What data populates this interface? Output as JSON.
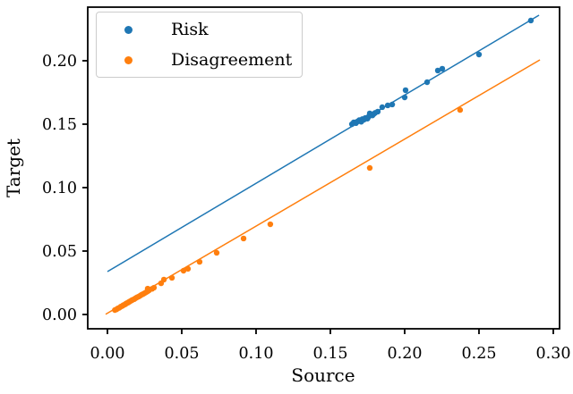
{
  "figure": {
    "background": "#ffffff",
    "frame_color": "#000000",
    "tick_color": "#000000"
  },
  "chart_data": {
    "type": "scatter",
    "title": "",
    "xlabel": "Source",
    "ylabel": "Target",
    "xlim": [
      -0.01325,
      0.30422
    ],
    "ylim": [
      -0.01127,
      0.24225
    ],
    "grid": false,
    "legend": {
      "position": "upper-left"
    },
    "xticks": {
      "values": [
        0.0,
        0.05,
        0.1,
        0.15,
        0.2,
        0.25,
        0.3
      ],
      "labels": [
        "0.00",
        "0.05",
        "0.10",
        "0.15",
        "0.20",
        "0.25",
        "0.30"
      ]
    },
    "yticks": {
      "values": [
        0.0,
        0.05,
        0.1,
        0.15,
        0.2
      ],
      "labels": [
        "0.00",
        "0.05",
        "0.10",
        "0.15",
        "0.20"
      ]
    },
    "series": [
      {
        "name": "Risk",
        "color": "#1f77b4",
        "marker": "circle",
        "fit_line": [
          [
            0.0,
            0.0338
          ],
          [
            0.2904,
            0.2359
          ]
        ],
        "points": [
          [
            0.1645,
            0.15
          ],
          [
            0.1657,
            0.1514
          ],
          [
            0.1662,
            0.1512
          ],
          [
            0.1672,
            0.1508
          ],
          [
            0.168,
            0.152
          ],
          [
            0.1687,
            0.1523
          ],
          [
            0.1694,
            0.1532
          ],
          [
            0.1699,
            0.1528
          ],
          [
            0.1708,
            0.1519
          ],
          [
            0.1715,
            0.154
          ],
          [
            0.1723,
            0.1534
          ],
          [
            0.1729,
            0.1538
          ],
          [
            0.1735,
            0.1549
          ],
          [
            0.175,
            0.1544
          ],
          [
            0.1758,
            0.156
          ],
          [
            0.1765,
            0.1585
          ],
          [
            0.1772,
            0.1575
          ],
          [
            0.1783,
            0.1569
          ],
          [
            0.1792,
            0.158
          ],
          [
            0.1801,
            0.1589
          ],
          [
            0.1819,
            0.1599
          ],
          [
            0.1849,
            0.1634
          ],
          [
            0.1886,
            0.1648
          ],
          [
            0.1916,
            0.1655
          ],
          [
            0.2,
            0.1711
          ],
          [
            0.2006,
            0.1768
          ],
          [
            0.2151,
            0.1831
          ],
          [
            0.2223,
            0.1923
          ],
          [
            0.2253,
            0.1937
          ],
          [
            0.25,
            0.2049
          ],
          [
            0.2849,
            0.2317
          ]
        ]
      },
      {
        "name": "Disagreement",
        "color": "#ff7f0e",
        "marker": "circle",
        "fit_line": [
          [
            -0.0012,
            0.0002
          ],
          [
            0.291,
            0.2007
          ]
        ],
        "points": [
          [
            0.005,
            0.0035
          ],
          [
            0.006,
            0.004
          ],
          [
            0.007,
            0.0048
          ],
          [
            0.008,
            0.0053
          ],
          [
            0.009,
            0.0062
          ],
          [
            0.01,
            0.0067
          ],
          [
            0.0105,
            0.0072
          ],
          [
            0.011,
            0.0075
          ],
          [
            0.012,
            0.008
          ],
          [
            0.0125,
            0.0086
          ],
          [
            0.013,
            0.0089
          ],
          [
            0.014,
            0.0094
          ],
          [
            0.0145,
            0.0099
          ],
          [
            0.015,
            0.0102
          ],
          [
            0.016,
            0.0109
          ],
          [
            0.0165,
            0.0113
          ],
          [
            0.017,
            0.0116
          ],
          [
            0.018,
            0.0121
          ],
          [
            0.019,
            0.0129
          ],
          [
            0.02,
            0.0136
          ],
          [
            0.021,
            0.0141
          ],
          [
            0.022,
            0.0148
          ],
          [
            0.023,
            0.0156
          ],
          [
            0.024,
            0.0161
          ],
          [
            0.025,
            0.0168
          ],
          [
            0.026,
            0.0175
          ],
          [
            0.027,
            0.0182
          ],
          [
            0.028,
            0.019
          ],
          [
            0.03,
            0.0202
          ],
          [
            0.0271,
            0.0204
          ],
          [
            0.0313,
            0.0211
          ],
          [
            0.0361,
            0.0246
          ],
          [
            0.038,
            0.0275
          ],
          [
            0.0434,
            0.0289
          ],
          [
            0.0512,
            0.0345
          ],
          [
            0.0542,
            0.036
          ],
          [
            0.062,
            0.0415
          ],
          [
            0.0735,
            0.0486
          ],
          [
            0.0916,
            0.0599
          ],
          [
            0.1096,
            0.0711
          ],
          [
            0.1765,
            0.1155
          ],
          [
            0.2373,
            0.1612
          ]
        ]
      }
    ]
  }
}
